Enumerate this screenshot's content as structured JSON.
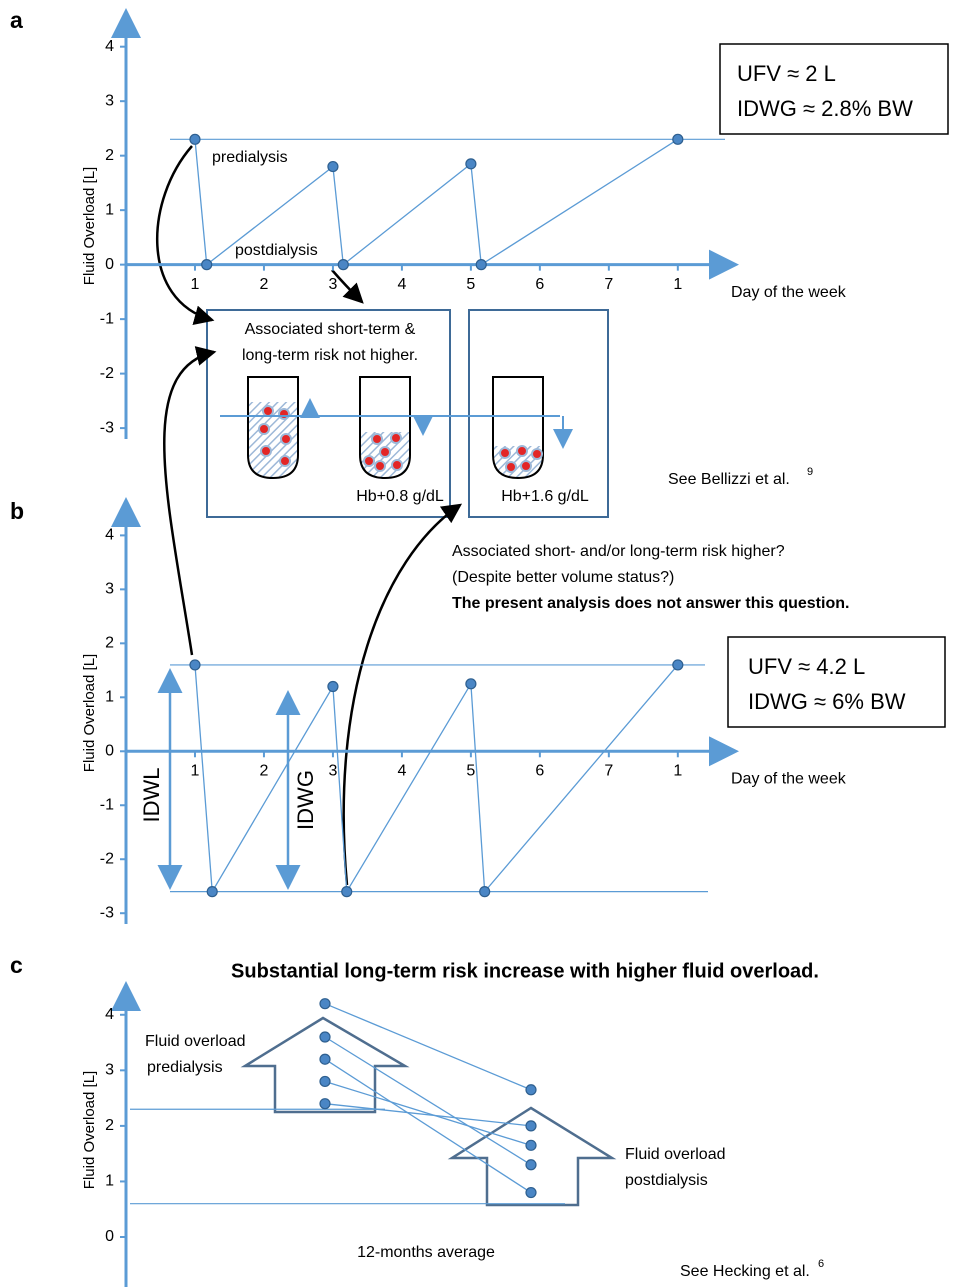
{
  "chart_data": [
    {
      "type": "line",
      "panel_label": "a",
      "y_label": "Fluid Overload [L]",
      "x_label": "Day of the week",
      "x": [
        1,
        1.17,
        3,
        3.15,
        5,
        5.15,
        8
      ],
      "series": [
        {
          "values": [
            2.3,
            0,
            1.8,
            0,
            1.85,
            0,
            2.3
          ],
          "color": "#5b9bd5"
        }
      ],
      "xlim": [
        0,
        8.8
      ],
      "ylim": [
        -3.2,
        4.6
      ],
      "xticks": [
        1,
        2,
        3,
        4,
        5,
        6,
        7,
        {
          "value": 8,
          "label": "1"
        }
      ],
      "yticks": [
        -3,
        -2,
        -1,
        0,
        1,
        2,
        3,
        4
      ],
      "hlines": [
        2.3
      ],
      "point_labels": [
        "predialysis",
        "postdialysis"
      ],
      "metrics": [
        "UFV ≈ 2 L",
        "IDWG ≈ 2.8% BW"
      ],
      "box_text": [
        "Associated short-term &",
        "long-term risk not higher."
      ],
      "tube_labels": [
        "Hb+0.8 g/dL",
        "Hb+1.6 g/dL"
      ],
      "reference": {
        "text": "See Bellizzi et al.",
        "superscript": "9"
      }
    },
    {
      "type": "line",
      "panel_label": "b",
      "y_label": "Fluid Overload [L]",
      "x_label": "Day of the week",
      "x": [
        1,
        1.25,
        3,
        3.2,
        5,
        5.2,
        8
      ],
      "series": [
        {
          "values": [
            1.6,
            -2.6,
            1.2,
            -2.6,
            1.25,
            -2.6,
            1.6
          ],
          "color": "#5b9bd5"
        }
      ],
      "xlim": [
        0,
        8.8
      ],
      "ylim": [
        -3.2,
        4.6
      ],
      "xticks": [
        1,
        2,
        3,
        4,
        5,
        6,
        7,
        {
          "value": 8,
          "label": "1"
        }
      ],
      "yticks": [
        -3,
        -2,
        -1,
        0,
        1,
        2,
        3,
        4
      ],
      "hlines": [
        1.6,
        -2.6
      ],
      "metrics": [
        "UFV ≈ 4.2 L",
        "IDWG ≈ 6% BW"
      ],
      "arrow_labels": [
        "IDWL",
        "IDWG"
      ],
      "question": [
        "Associated short- and/or long-term risk higher?",
        "(Despite better volume status?)"
      ],
      "question_note": "The present analysis does not answer this question."
    },
    {
      "type": "slope",
      "panel_label": "c",
      "title": "Substantial long-term risk increase with higher fluid overload.",
      "y_label": "Fluid Overload [L]",
      "x_label": "12-months average",
      "categories": [
        null,
        null
      ],
      "series": [
        {
          "values": [
            4.2,
            2.65
          ],
          "color": "#5b9bd5"
        },
        {
          "values": [
            3.6,
            1.3
          ],
          "color": "#5b9bd5"
        },
        {
          "values": [
            3.2,
            0.8
          ],
          "color": "#5b9bd5"
        },
        {
          "values": [
            2.8,
            1.65
          ],
          "color": "#5b9bd5"
        },
        {
          "values": [
            2.4,
            2.0
          ],
          "color": "#5b9bd5"
        }
      ],
      "ylim": [
        -0.9,
        4.5
      ],
      "yticks": [
        0,
        1,
        2,
        3,
        4
      ],
      "hlines": [
        2.3,
        0.6
      ],
      "arrow_labels": [
        [
          "Fluid overload",
          "predialysis"
        ],
        [
          "Fluid overload",
          "postdialysis"
        ]
      ],
      "reference": {
        "text": "See Hecking et al.",
        "superscript": "6"
      }
    }
  ]
}
